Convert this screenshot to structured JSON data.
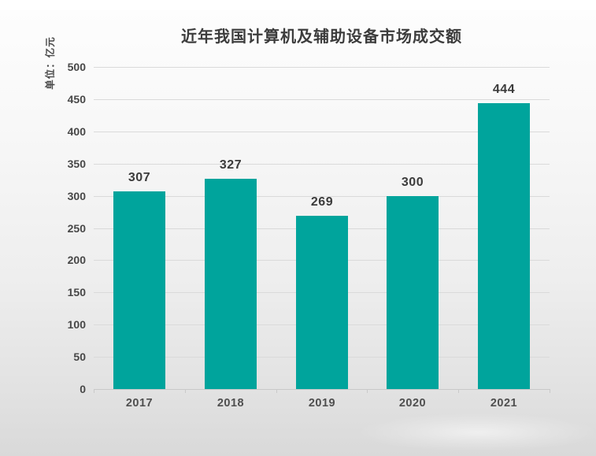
{
  "chart_data": {
    "type": "bar",
    "title": "近年我国计算机及辅助设备市场成交额",
    "unit_label": "单位：亿元",
    "categories": [
      "2017",
      "2018",
      "2019",
      "2020",
      "2021"
    ],
    "values": [
      307,
      327,
      269,
      300,
      444
    ],
    "ylim": [
      0,
      500
    ],
    "yticks": [
      0,
      50,
      100,
      150,
      200,
      250,
      300,
      350,
      400,
      450,
      500
    ],
    "grid": true,
    "legend": "none",
    "bar_color": "#00A49C",
    "value_label_color": "#3b3b3b",
    "axis_text_color": "#4f4f4f",
    "gridline_color": "#dadada",
    "title_color": "#3c3c3c"
  }
}
